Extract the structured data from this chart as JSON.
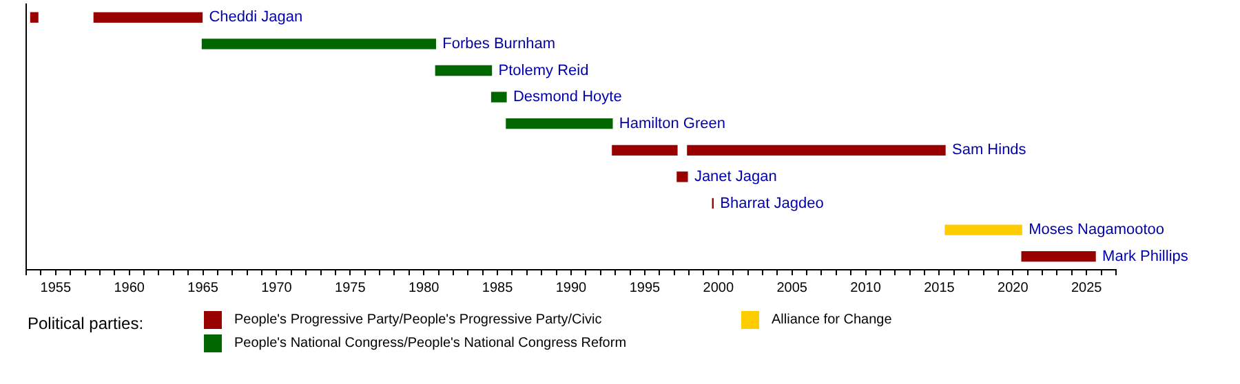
{
  "chart_data": {
    "type": "bar",
    "orientation": "horizontal",
    "tick_labels": "x",
    "grid": false,
    "legend": "bottom",
    "legend_title": "Political parties:",
    "categories": [
      "Cheddi Jagan",
      "Forbes Burnham",
      "Ptolemy Reid",
      "Desmond Hoyte",
      "Hamilton Green",
      "Sam Hinds",
      "Janet Jagan",
      "Bharrat Jagdeo",
      "Moses Nagamootoo",
      "Mark Phillips"
    ],
    "series": [
      {
        "name": "People's Progressive Party/People's Progressive Party/Civic",
        "color": "#990000",
        "base": [
          1957.6,
          null,
          null,
          null,
          null,
          1992.8,
          1997.2,
          1999.6,
          null,
          2020.6
        ],
        "values": [
          7.35,
          null,
          null,
          null,
          null,
          4.4,
          0.7,
          0.05,
          null,
          5.0
        ]
      },
      {
        "color": "#990000",
        "base": [
          1953.3,
          null,
          null,
          null,
          null,
          1997.9,
          null,
          null,
          null,
          null
        ],
        "values": [
          0.5,
          null,
          null,
          null,
          null,
          17.5,
          null,
          null,
          null,
          null
        ]
      },
      {
        "name": "People's National Congress/People's National Congress Reform",
        "color": "#006600",
        "base": [
          null,
          1964.95,
          1980.8,
          1984.6,
          1985.6,
          null,
          null,
          null,
          null,
          null
        ],
        "values": [
          null,
          15.85,
          3.8,
          1.0,
          7.2,
          null,
          null,
          null,
          null,
          null
        ]
      },
      {
        "name": "Alliance for Change",
        "color": "#ffcc00",
        "base": [
          null,
          null,
          null,
          null,
          null,
          null,
          null,
          null,
          2015.4,
          null
        ],
        "values": [
          null,
          null,
          null,
          null,
          null,
          null,
          null,
          null,
          5.2,
          null
        ]
      }
    ],
    "xlim": [
      1953,
      2027
    ],
    "xticks": [
      {
        "value": 1953,
        "label": null
      },
      {
        "value": 1954,
        "label": null
      },
      1955,
      {
        "value": 1956,
        "label": null
      },
      {
        "value": 1957,
        "label": null
      },
      {
        "value": 1958,
        "label": null
      },
      {
        "value": 1959,
        "label": null
      },
      1960,
      {
        "value": 1961,
        "label": null
      },
      {
        "value": 1962,
        "label": null
      },
      {
        "value": 1963,
        "label": null
      },
      {
        "value": 1964,
        "label": null
      },
      1965,
      {
        "value": 1966,
        "label": null
      },
      {
        "value": 1967,
        "label": null
      },
      {
        "value": 1968,
        "label": null
      },
      {
        "value": 1969,
        "label": null
      },
      1970,
      {
        "value": 1971,
        "label": null
      },
      {
        "value": 1972,
        "label": null
      },
      {
        "value": 1973,
        "label": null
      },
      {
        "value": 1974,
        "label": null
      },
      1975,
      {
        "value": 1976,
        "label": null
      },
      {
        "value": 1977,
        "label": null
      },
      {
        "value": 1978,
        "label": null
      },
      {
        "value": 1979,
        "label": null
      },
      1980,
      {
        "value": 1981,
        "label": null
      },
      {
        "value": 1982,
        "label": null
      },
      {
        "value": 1983,
        "label": null
      },
      {
        "value": 1984,
        "label": null
      },
      1985,
      {
        "value": 1986,
        "label": null
      },
      {
        "value": 1987,
        "label": null
      },
      {
        "value": 1988,
        "label": null
      },
      {
        "value": 1989,
        "label": null
      },
      1990,
      {
        "value": 1991,
        "label": null
      },
      {
        "value": 1992,
        "label": null
      },
      {
        "value": 1993,
        "label": null
      },
      {
        "value": 1994,
        "label": null
      },
      1995,
      {
        "value": 1996,
        "label": null
      },
      {
        "value": 1997,
        "label": null
      },
      {
        "value": 1998,
        "label": null
      },
      {
        "value": 1999,
        "label": null
      },
      2000,
      {
        "value": 2001,
        "label": null
      },
      {
        "value": 2002,
        "label": null
      },
      {
        "value": 2003,
        "label": null
      },
      {
        "value": 2004,
        "label": null
      },
      2005,
      {
        "value": 2006,
        "label": null
      },
      {
        "value": 2007,
        "label": null
      },
      {
        "value": 2008,
        "label": null
      },
      {
        "value": 2009,
        "label": null
      },
      2010,
      {
        "value": 2011,
        "label": null
      },
      {
        "value": 2012,
        "label": null
      },
      {
        "value": 2013,
        "label": null
      },
      {
        "value": 2014,
        "label": null
      },
      2015,
      {
        "value": 2016,
        "label": null
      },
      {
        "value": 2017,
        "label": null
      },
      {
        "value": 2018,
        "label": null
      },
      {
        "value": 2019,
        "label": null
      },
      2020,
      {
        "value": 2021,
        "label": null
      },
      {
        "value": 2022,
        "label": null
      },
      {
        "value": 2023,
        "label": null
      },
      {
        "value": 2024,
        "label": null
      },
      2025,
      {
        "value": 2026,
        "label": null
      },
      {
        "value": 2027,
        "label": null
      }
    ]
  }
}
